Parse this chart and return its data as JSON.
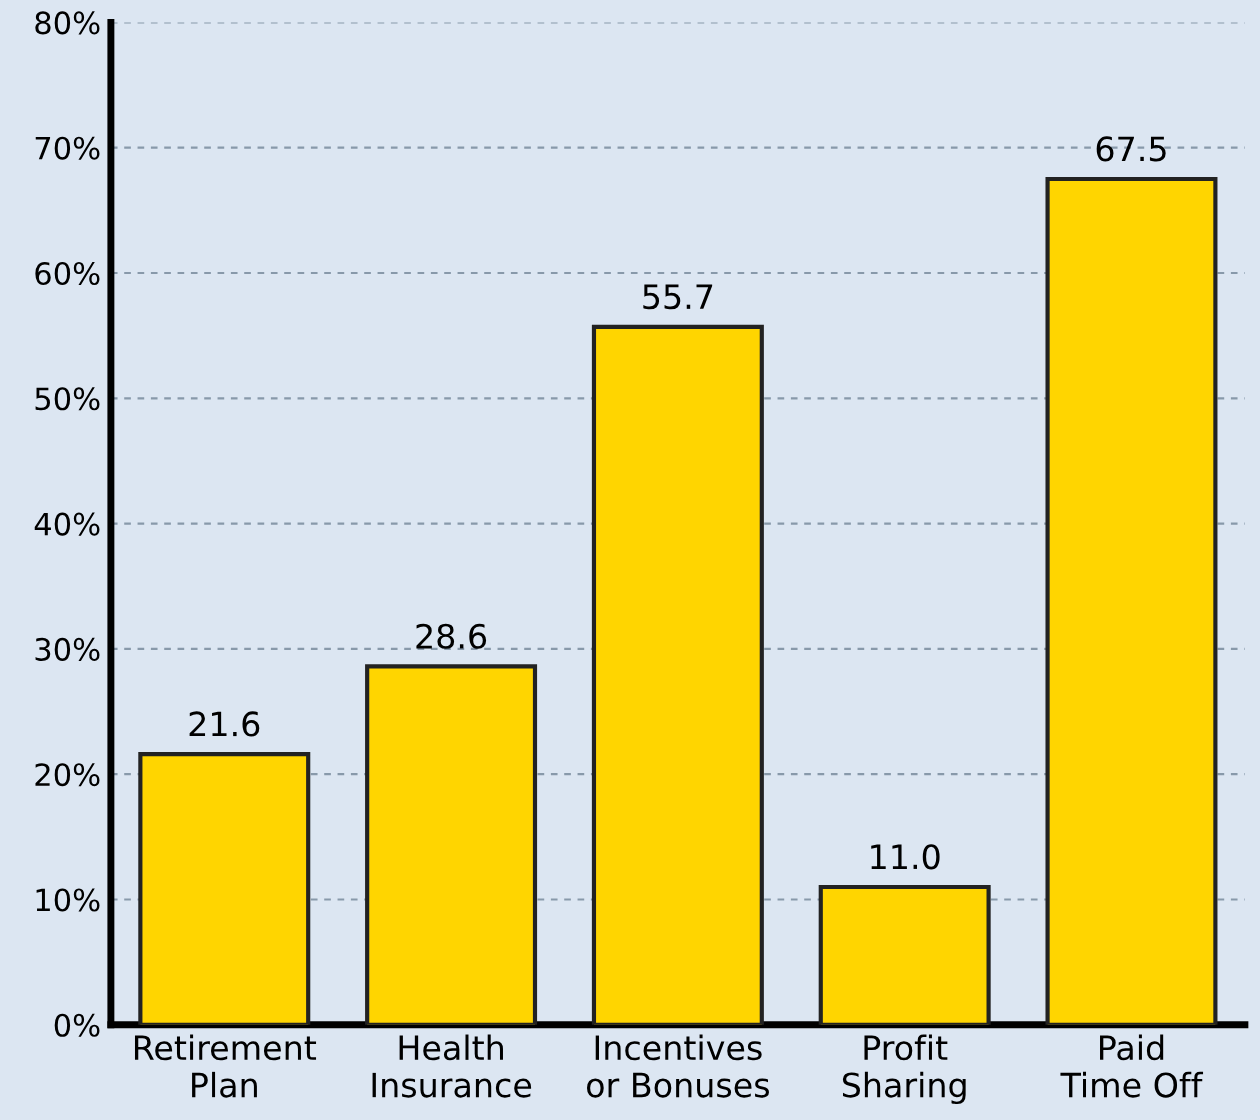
{
  "chart_data": {
    "type": "bar",
    "categories": [
      "Retirement\nPlan",
      "Health\nInsurance",
      "Incentives\nor Bonuses",
      "Profit\nSharing",
      "Paid\nTime Off"
    ],
    "values": [
      21.6,
      28.6,
      55.7,
      11.0,
      67.5
    ],
    "value_labels": [
      "21.6",
      "28.6",
      "55.7",
      "11.0",
      "67.5"
    ],
    "color": "#ffd500",
    "ylim": [
      0,
      80
    ],
    "yticks": [
      {
        "value": 0,
        "label": "0%"
      },
      {
        "value": 10,
        "label": "10%"
      },
      {
        "value": 20,
        "label": "20%"
      },
      {
        "value": 30,
        "label": "30%"
      },
      {
        "value": 40,
        "label": "40%"
      },
      {
        "value": 50,
        "label": "50%"
      },
      {
        "value": 60,
        "label": "60%"
      },
      {
        "value": 70,
        "label": "70%"
      },
      {
        "value": 80,
        "label": "80%"
      }
    ],
    "grid": "y",
    "legend": false
  }
}
